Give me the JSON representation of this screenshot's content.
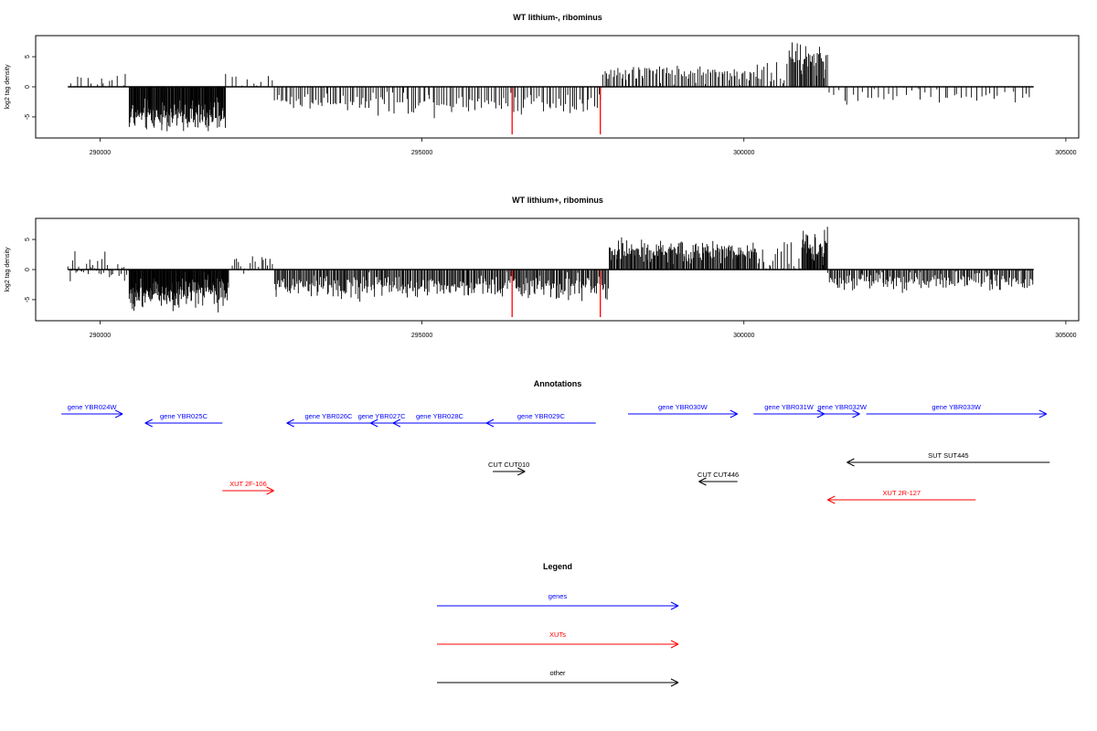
{
  "colors": {
    "gene": "#0000ff",
    "xut": "#ff0000",
    "other": "#000000",
    "highlight": "#ff0000",
    "bars": "#000000"
  },
  "panels": [
    {
      "title": "WT lithium-, ribominus",
      "ylabel": "log2 tag density",
      "xlim": [
        289000,
        305200
      ],
      "ylim": [
        -8.5,
        8.5
      ],
      "xticks": [
        290000,
        295000,
        300000,
        305000
      ],
      "yticks": [
        5,
        0,
        -5
      ],
      "segments": [
        {
          "from": 289500,
          "to": 290450,
          "mean": 0.9,
          "spread": 1.2,
          "min": 0.1,
          "max": 3.8,
          "count": 14
        },
        {
          "from": 290450,
          "to": 291950,
          "mean": -4.8,
          "spread": 1.8,
          "min": -7.8,
          "max": -0.5,
          "count": 170
        },
        {
          "from": 291950,
          "to": 292700,
          "mean": 1.2,
          "spread": 1.0,
          "min": 0.2,
          "max": 3.8,
          "count": 10
        },
        {
          "from": 292700,
          "to": 294300,
          "mean": -2.4,
          "spread": 1.1,
          "min": -4.6,
          "max": -0.2,
          "count": 48
        },
        {
          "from": 294300,
          "to": 297800,
          "mean": -2.6,
          "spread": 1.4,
          "min": -5.3,
          "max": -0.2,
          "count": 95
        },
        {
          "from": 297800,
          "to": 300300,
          "mean": 2.2,
          "spread": 1.1,
          "min": 0.2,
          "max": 5.4,
          "count": 95
        },
        {
          "from": 300300,
          "to": 300700,
          "mean": 2.4,
          "spread": 2.0,
          "min": 0.2,
          "max": 8.2,
          "count": 10
        },
        {
          "from": 300700,
          "to": 301300,
          "mean": 4.5,
          "spread": 2.2,
          "min": 0.3,
          "max": 8.1,
          "count": 40
        },
        {
          "from": 301300,
          "to": 304500,
          "mean": -1.4,
          "spread": 1.0,
          "min": -4.4,
          "max": -0.1,
          "count": 45
        }
      ],
      "highlight_x": [
        296400,
        297770
      ],
      "highlight_y": [
        -7.9,
        -7.9
      ]
    },
    {
      "title": "WT lithium+, ribominus",
      "ylabel": "log2 tag density",
      "xlim": [
        289000,
        305200
      ],
      "ylim": [
        -8.5,
        8.5
      ],
      "xticks": [
        290000,
        295000,
        300000,
        305000
      ],
      "yticks": [
        5,
        0,
        -5
      ],
      "segments": [
        {
          "from": 289500,
          "to": 290450,
          "mean": 0.4,
          "spread": 1.6,
          "min": -2.4,
          "max": 3.4,
          "count": 40
        },
        {
          "from": 290450,
          "to": 292000,
          "mean": -3.8,
          "spread": 1.9,
          "min": -7.7,
          "max": -0.3,
          "count": 190
        },
        {
          "from": 292000,
          "to": 292700,
          "mean": 0.6,
          "spread": 1.3,
          "min": -2.0,
          "max": 3.4,
          "count": 20
        },
        {
          "from": 292700,
          "to": 297900,
          "mean": -2.8,
          "spread": 1.4,
          "min": -6.0,
          "max": -0.2,
          "count": 320
        },
        {
          "from": 297900,
          "to": 300200,
          "mean": 3.0,
          "spread": 1.3,
          "min": 0.2,
          "max": 6.0,
          "count": 170
        },
        {
          "from": 300200,
          "to": 300900,
          "mean": 2.0,
          "spread": 1.8,
          "min": 0.2,
          "max": 7.6,
          "count": 20
        },
        {
          "from": 300900,
          "to": 301300,
          "mean": 3.8,
          "spread": 2.0,
          "min": 0.3,
          "max": 7.7,
          "count": 40
        },
        {
          "from": 301300,
          "to": 304500,
          "mean": -1.8,
          "spread": 1.2,
          "min": -5.3,
          "max": 2.4,
          "count": 170
        }
      ],
      "highlight_x": [
        296400,
        297770
      ],
      "highlight_y": [
        -7.9,
        -7.9
      ]
    }
  ],
  "annotations": {
    "title": "Annotations",
    "xlim": [
      289000,
      305200
    ],
    "features": [
      {
        "label": "gene YBR024W",
        "start": 289400,
        "end": 290350,
        "strand": "+",
        "kind": "gene",
        "row": 0
      },
      {
        "label": "gene YBR025C",
        "start": 290700,
        "end": 291900,
        "strand": "-",
        "kind": "gene",
        "row": 1
      },
      {
        "label": "gene YBR026C",
        "start": 292900,
        "end": 294200,
        "strand": "-",
        "kind": "gene",
        "row": 1
      },
      {
        "label": "gene YBR027C",
        "start": 294200,
        "end": 294550,
        "strand": "-",
        "kind": "gene",
        "row": 1
      },
      {
        "label": "gene YBR028C",
        "start": 294550,
        "end": 296000,
        "strand": "-",
        "kind": "gene",
        "row": 1
      },
      {
        "label": "gene YBR029C",
        "start": 296000,
        "end": 297700,
        "strand": "-",
        "kind": "gene",
        "row": 1
      },
      {
        "label": "gene YBR030W",
        "start": 298200,
        "end": 299900,
        "strand": "+",
        "kind": "gene",
        "row": 0
      },
      {
        "label": "gene YBR031W",
        "start": 300150,
        "end": 301250,
        "strand": "+",
        "kind": "gene",
        "row": 0
      },
      {
        "label": "gene YBR032W",
        "start": 301250,
        "end": 301800,
        "strand": "+",
        "kind": "gene",
        "row": 0
      },
      {
        "label": "gene YBR033W",
        "start": 301900,
        "end": 304700,
        "strand": "+",
        "kind": "gene",
        "row": 0
      },
      {
        "label": "SUT SUT445",
        "start": 301600,
        "end": 304750,
        "strand": "-",
        "kind": "other",
        "row": 2
      },
      {
        "label": "CUT CUT010",
        "start": 296100,
        "end": 296600,
        "strand": "+",
        "kind": "other",
        "row": 3
      },
      {
        "label": "CUT CUT446",
        "start": 299300,
        "end": 299900,
        "strand": "-",
        "kind": "other",
        "row": 4
      },
      {
        "label": "XUT 2F-106",
        "start": 291900,
        "end": 292700,
        "strand": "+",
        "kind": "xut",
        "row": 5
      },
      {
        "label": "XUT 2R-127",
        "start": 301300,
        "end": 303600,
        "strand": "-",
        "kind": "xut",
        "row": 6
      }
    ]
  },
  "legend": {
    "title": "Legend",
    "items": [
      {
        "label": "genes",
        "kind": "gene"
      },
      {
        "label": "XUTs",
        "kind": "xut"
      },
      {
        "label": "other",
        "kind": "other"
      }
    ]
  }
}
